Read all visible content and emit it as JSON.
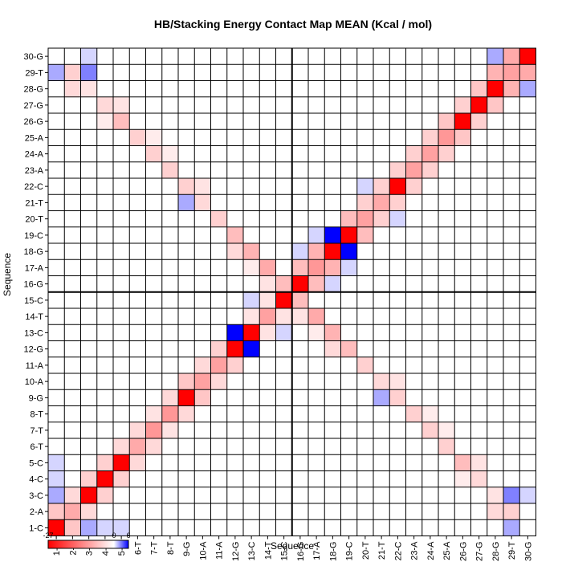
{
  "chart_data": {
    "type": "heatmap",
    "title": "HB/Stacking Energy Contact Map MEAN (Kcal / mol)",
    "xlabel": "Sequence",
    "ylabel": "Sequence",
    "labels": [
      "1-C",
      "2-A",
      "3-C",
      "4-C",
      "5-C",
      "6-T",
      "7-T",
      "8-T",
      "9-G",
      "10-A",
      "11-A",
      "12-G",
      "13-C",
      "14-T",
      "15-C",
      "16-G",
      "17-A",
      "18-G",
      "19-C",
      "20-T",
      "21-T",
      "22-C",
      "23-A",
      "24-A",
      "25-A",
      "26-G",
      "27-G",
      "28-G",
      "29-T",
      "30-G"
    ],
    "colorbar": {
      "min": -27,
      "max": 6,
      "ticks": [
        "-27",
        "0",
        "6"
      ],
      "low_color": "#ff0000",
      "mid_color": "#ffffff",
      "high_color": "#0000ff"
    },
    "divider_index": 15,
    "cells": [
      [
        1,
        1,
        -27
      ],
      [
        2,
        2,
        -9
      ],
      [
        3,
        3,
        -27
      ],
      [
        4,
        4,
        -27
      ],
      [
        5,
        5,
        -27
      ],
      [
        6,
        6,
        -9
      ],
      [
        7,
        7,
        -11
      ],
      [
        8,
        8,
        -11
      ],
      [
        9,
        9,
        -27
      ],
      [
        10,
        10,
        -10
      ],
      [
        11,
        11,
        -10
      ],
      [
        12,
        12,
        -27
      ],
      [
        13,
        13,
        -27
      ],
      [
        14,
        14,
        -10
      ],
      [
        15,
        15,
        -27
      ],
      [
        16,
        16,
        -27
      ],
      [
        17,
        17,
        -11
      ],
      [
        18,
        18,
        -27
      ],
      [
        19,
        19,
        -27
      ],
      [
        20,
        20,
        -10
      ],
      [
        21,
        21,
        -9
      ],
      [
        22,
        22,
        -27
      ],
      [
        23,
        23,
        -10
      ],
      [
        24,
        24,
        -10
      ],
      [
        25,
        25,
        -11
      ],
      [
        26,
        26,
        -27
      ],
      [
        27,
        27,
        -27
      ],
      [
        28,
        28,
        -27
      ],
      [
        29,
        29,
        -10
      ],
      [
        30,
        30,
        -27
      ],
      [
        1,
        2,
        -6
      ],
      [
        2,
        1,
        -6
      ],
      [
        2,
        3,
        -4
      ],
      [
        3,
        2,
        -4
      ],
      [
        3,
        4,
        -5
      ],
      [
        4,
        3,
        -5
      ],
      [
        4,
        5,
        -5
      ],
      [
        5,
        4,
        -5
      ],
      [
        5,
        6,
        -4
      ],
      [
        6,
        5,
        -4
      ],
      [
        6,
        7,
        -4
      ],
      [
        7,
        6,
        -4
      ],
      [
        7,
        8,
        -3
      ],
      [
        8,
        7,
        -3
      ],
      [
        8,
        9,
        -4
      ],
      [
        9,
        8,
        -4
      ],
      [
        9,
        10,
        -6
      ],
      [
        10,
        9,
        -6
      ],
      [
        10,
        11,
        -4
      ],
      [
        11,
        10,
        -4
      ],
      [
        11,
        12,
        -5
      ],
      [
        12,
        11,
        -5
      ],
      [
        13,
        14,
        -3
      ],
      [
        14,
        13,
        -3
      ],
      [
        14,
        15,
        -3
      ],
      [
        15,
        14,
        -3
      ],
      [
        16,
        17,
        -7
      ],
      [
        17,
        16,
        -7
      ],
      [
        17,
        18,
        -8
      ],
      [
        18,
        17,
        -8
      ],
      [
        19,
        20,
        -7
      ],
      [
        20,
        19,
        -7
      ],
      [
        20,
        21,
        -5
      ],
      [
        21,
        20,
        -5
      ],
      [
        21,
        22,
        -5
      ],
      [
        22,
        21,
        -5
      ],
      [
        22,
        23,
        -5
      ],
      [
        23,
        22,
        -5
      ],
      [
        23,
        24,
        -5
      ],
      [
        24,
        23,
        -5
      ],
      [
        24,
        25,
        -5
      ],
      [
        25,
        24,
        -5
      ],
      [
        25,
        26,
        -6
      ],
      [
        26,
        25,
        -6
      ],
      [
        26,
        27,
        -5
      ],
      [
        27,
        26,
        -5
      ],
      [
        27,
        28,
        -6
      ],
      [
        28,
        27,
        -6
      ],
      [
        28,
        29,
        -8
      ],
      [
        29,
        28,
        -8
      ],
      [
        29,
        30,
        -9
      ],
      [
        30,
        29,
        -9
      ],
      [
        1,
        3,
        2
      ],
      [
        3,
        1,
        2
      ],
      [
        1,
        4,
        1
      ],
      [
        4,
        1,
        1
      ],
      [
        1,
        5,
        1
      ],
      [
        5,
        1,
        1
      ],
      [
        2,
        29,
        -5
      ],
      [
        29,
        2,
        -5
      ],
      [
        2,
        28,
        -4
      ],
      [
        28,
        2,
        -4
      ],
      [
        3,
        29,
        3
      ],
      [
        29,
        3,
        3
      ],
      [
        3,
        30,
        1
      ],
      [
        30,
        3,
        1
      ],
      [
        3,
        28,
        -3
      ],
      [
        28,
        3,
        -3
      ],
      [
        4,
        27,
        -4
      ],
      [
        27,
        4,
        -4
      ],
      [
        4,
        26,
        -2
      ],
      [
        26,
        4,
        -2
      ],
      [
        5,
        26,
        -7
      ],
      [
        26,
        5,
        -7
      ],
      [
        5,
        27,
        -3
      ],
      [
        27,
        5,
        -3
      ],
      [
        6,
        25,
        -5
      ],
      [
        25,
        6,
        -5
      ],
      [
        7,
        24,
        -5
      ],
      [
        24,
        7,
        -5
      ],
      [
        7,
        25,
        -2
      ],
      [
        25,
        7,
        -2
      ],
      [
        8,
        23,
        -5
      ],
      [
        23,
        8,
        -5
      ],
      [
        8,
        24,
        -2
      ],
      [
        24,
        8,
        -2
      ],
      [
        9,
        22,
        -5
      ],
      [
        22,
        9,
        -5
      ],
      [
        10,
        21,
        -4
      ],
      [
        21,
        10,
        -4
      ],
      [
        10,
        22,
        -3
      ],
      [
        22,
        10,
        -3
      ],
      [
        11,
        20,
        -5
      ],
      [
        20,
        11,
        -5
      ],
      [
        12,
        19,
        -7
      ],
      [
        19,
        12,
        -7
      ],
      [
        12,
        18,
        -4
      ],
      [
        18,
        12,
        -4
      ],
      [
        13,
        18,
        -8
      ],
      [
        18,
        13,
        -8
      ],
      [
        13,
        17,
        -2
      ],
      [
        17,
        13,
        -2
      ],
      [
        14,
        17,
        -9
      ],
      [
        17,
        14,
        -9
      ],
      [
        14,
        16,
        -3
      ],
      [
        16,
        14,
        -3
      ],
      [
        15,
        16,
        -7
      ],
      [
        16,
        15,
        -7
      ],
      [
        12,
        13,
        6
      ],
      [
        13,
        12,
        6
      ],
      [
        18,
        19,
        6
      ],
      [
        19,
        18,
        6
      ],
      [
        1,
        29,
        2
      ],
      [
        29,
        1,
        2
      ],
      [
        28,
        30,
        2
      ],
      [
        30,
        28,
        2
      ],
      [
        21,
        9,
        2
      ],
      [
        9,
        21,
        2
      ],
      [
        22,
        20,
        1
      ],
      [
        20,
        22,
        1
      ],
      [
        19,
        17,
        1
      ],
      [
        17,
        19,
        1
      ],
      [
        15,
        13,
        1
      ],
      [
        13,
        15,
        1
      ],
      [
        16,
        18,
        1
      ],
      [
        18,
        16,
        1
      ]
    ]
  }
}
